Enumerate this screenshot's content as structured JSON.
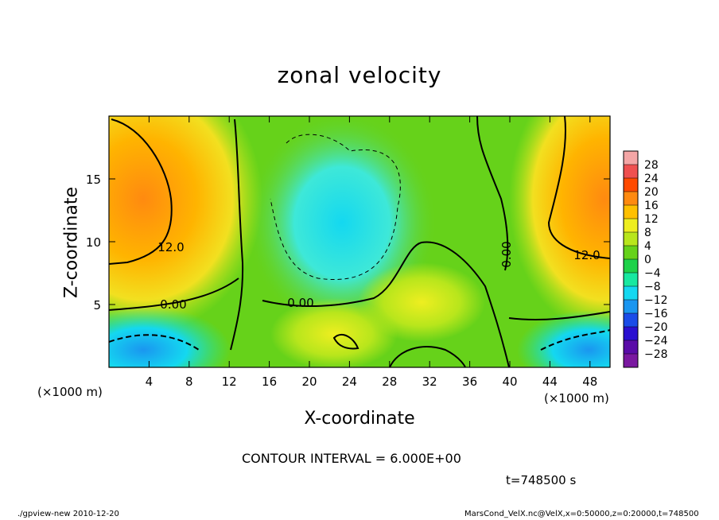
{
  "chart_data": {
    "type": "heatmap",
    "title": "zonal velocity",
    "xlabel": "X-coordinate",
    "ylabel": "Z-coordinate",
    "x_unit": "(×1000 m)",
    "xlim": [
      0,
      50
    ],
    "ylim": [
      0,
      20
    ],
    "x_ticks": [
      4,
      8,
      12,
      16,
      20,
      24,
      28,
      32,
      36,
      40,
      44,
      48
    ],
    "y_ticks": [
      5,
      10,
      15
    ],
    "contour_labels": [
      "12.0",
      "0.00",
      "0.00",
      "0.00",
      "12.0"
    ],
    "colorbar": {
      "levels": [
        28,
        24,
        20,
        16,
        12,
        8,
        4,
        0,
        -4,
        -8,
        -12,
        -16,
        -20,
        -24,
        -28
      ],
      "labels": [
        "28",
        "24",
        "20",
        "16",
        "12",
        "8",
        "4",
        "0",
        "−4",
        "−8",
        "−12",
        "−16",
        "−20",
        "−24",
        "−28"
      ],
      "colors": [
        "#f4a6a6",
        "#ef5050",
        "#ff4a00",
        "#ff8a10",
        "#ffc000",
        "#eeee20",
        "#b8e61c",
        "#66d21a",
        "#1ed24a",
        "#18e8a0",
        "#14d8f0",
        "#1a96f0",
        "#1a4ce8",
        "#2a10d0",
        "#5a0ca8",
        "#7a18a0"
      ]
    },
    "fields_described": {
      "background_value": 0,
      "high_regions": [
        {
          "center_x": 4,
          "center_z": 13,
          "peak": 16
        },
        {
          "center_x": 48,
          "center_z": 14,
          "peak": 16
        }
      ],
      "low_regions": [
        {
          "center_x": 23,
          "center_z": 10,
          "min": -8
        },
        {
          "center_x": 3,
          "center_z": 1,
          "min": -12
        },
        {
          "center_x": 47,
          "center_z": 1,
          "min": -12
        }
      ]
    }
  },
  "contour_interval_text": "CONTOUR INTERVAL = 6.000E+00",
  "time_text": "t=748500 s",
  "footer_left": "./gpview-new   2010-12-20",
  "footer_right": "MarsCond_VelX.nc@VelX,x=0:50000,z=0:20000,t=748500"
}
